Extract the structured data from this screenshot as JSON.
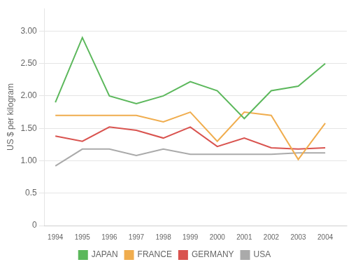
{
  "chart_data": {
    "type": "line",
    "x": [
      1994,
      1995,
      1996,
      1997,
      1998,
      1999,
      2000,
      2001,
      2002,
      2003,
      2004
    ],
    "series": [
      {
        "name": "JAPAN",
        "color": "#5cb85c",
        "values": [
          1.9,
          2.9,
          2.0,
          1.88,
          2.0,
          2.22,
          2.08,
          1.65,
          2.08,
          2.15,
          2.5
        ]
      },
      {
        "name": "FRANCE",
        "color": "#f0ad4e",
        "values": [
          1.7,
          1.7,
          1.7,
          1.7,
          1.6,
          1.75,
          1.3,
          1.75,
          1.7,
          1.02,
          1.58
        ]
      },
      {
        "name": "GERMANY",
        "color": "#d9534f",
        "values": [
          1.38,
          1.3,
          1.52,
          1.47,
          1.35,
          1.52,
          1.22,
          1.35,
          1.2,
          1.18,
          1.2
        ]
      },
      {
        "name": "USA",
        "color": "#aaaaaa",
        "values": [
          0.92,
          1.18,
          1.18,
          1.08,
          1.18,
          1.1,
          1.1,
          1.1,
          1.1,
          1.12,
          1.12
        ]
      }
    ],
    "y_label": "US $ per kilogram",
    "xlim": [
      1993.6,
      2004.8
    ],
    "xticks": [
      1994,
      1995,
      1996,
      1997,
      1998,
      1999,
      2000,
      2001,
      2002,
      2003,
      2004
    ],
    "ylim": [
      0,
      3.35
    ],
    "yticks": [
      0,
      0.5,
      {
        "value": 1.0,
        "label": "1.00"
      },
      {
        "value": 1.5,
        "label": "1.50"
      },
      {
        "value": 2.0,
        "label": "2.00"
      },
      {
        "value": 2.5,
        "label": "2.50"
      },
      {
        "value": 3.0,
        "label": "3.00"
      }
    ],
    "grid": "y",
    "legend": "bottom"
  }
}
